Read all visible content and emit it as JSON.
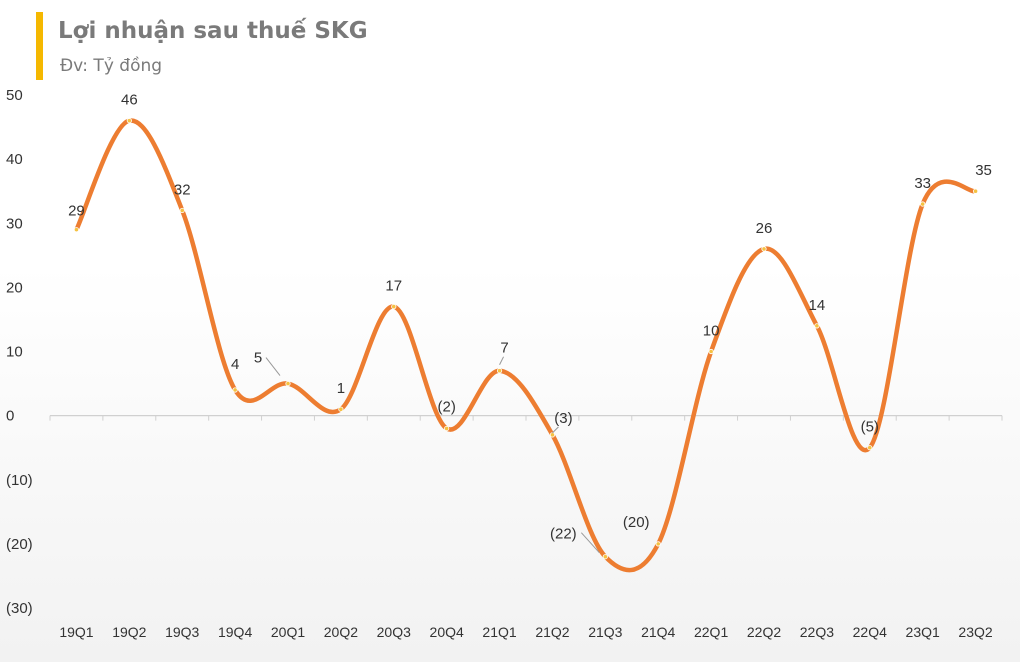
{
  "title": "Lợi nhuận sau thuế SKG",
  "subtitle": "Đv: Tỷ đồng",
  "colors": {
    "accent": "#f5b800",
    "line": "#ed7d31",
    "marker": "#f5c242"
  },
  "chart_data": {
    "type": "line",
    "title": "Lợi nhuận sau thuế SKG",
    "unit": "Đv: Tỷ đồng",
    "categories": [
      "19Q1",
      "19Q2",
      "19Q3",
      "19Q4",
      "20Q1",
      "20Q2",
      "20Q3",
      "20Q4",
      "21Q1",
      "21Q2",
      "21Q3",
      "21Q4",
      "22Q1",
      "22Q2",
      "22Q3",
      "22Q4",
      "23Q1",
      "23Q2"
    ],
    "values": [
      29,
      46,
      32,
      4,
      5,
      1,
      17,
      -2,
      7,
      -3,
      -22,
      -20,
      10,
      26,
      14,
      -5,
      33,
      35
    ],
    "data_labels": [
      "29",
      "46",
      "32",
      "4",
      "5",
      "1",
      "17",
      "(2)",
      "7",
      "(3)",
      "(22)",
      "(20)",
      "10",
      "26",
      "14",
      "(5)",
      "33",
      "35"
    ],
    "ylim": [
      -30,
      50
    ],
    "yticks": [
      50,
      40,
      30,
      20,
      10,
      0,
      -10,
      -20,
      -30
    ],
    "ytick_labels": [
      "50",
      "40",
      "30",
      "20",
      "10",
      "0",
      "(10)",
      "(20)",
      "(30)"
    ],
    "smooth": true,
    "legend": "none"
  }
}
